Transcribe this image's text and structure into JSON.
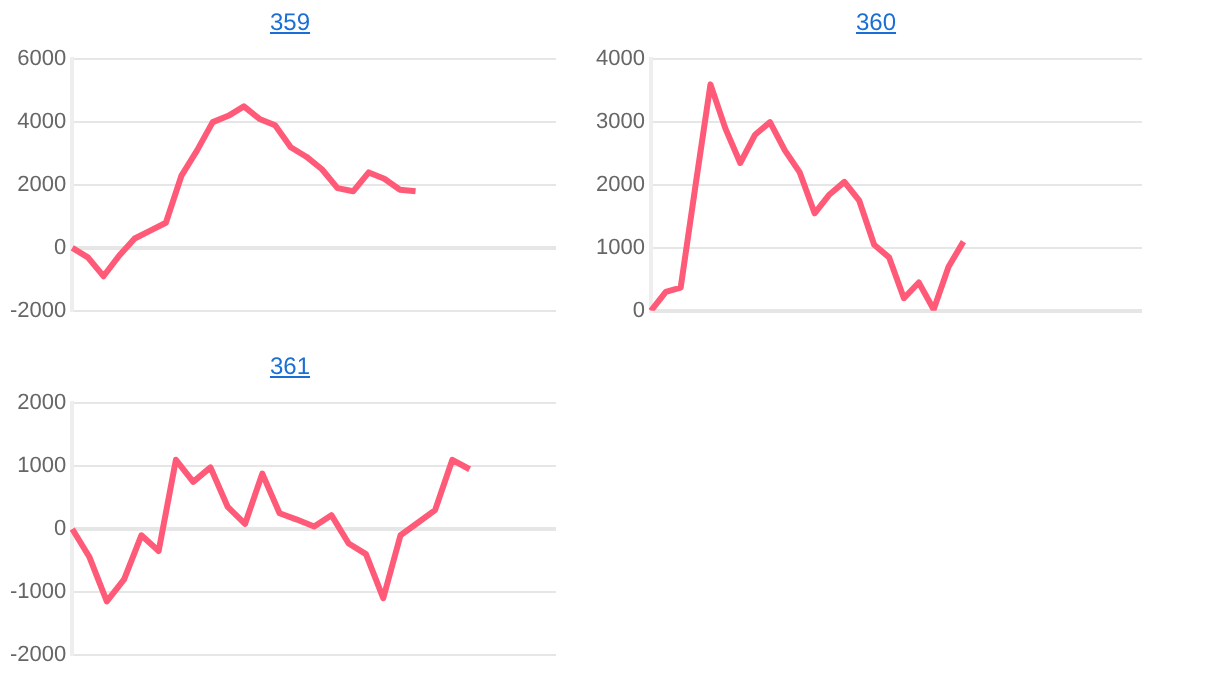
{
  "chart_data": [
    {
      "type": "line",
      "title": "359",
      "categories": [
        null,
        null,
        null,
        null,
        null,
        null,
        null,
        null,
        null,
        null,
        null,
        null,
        null,
        null,
        null,
        null,
        null,
        null,
        null,
        null,
        null,
        null,
        null,
        null,
        null,
        null,
        null,
        null,
        null,
        null,
        null,
        null
      ],
      "series": [
        {
          "color": "#ff5a78",
          "values": [
            0,
            -300,
            -900,
            -250,
            300,
            550,
            800,
            2300,
            3100,
            4000,
            4200,
            4500,
            4100,
            3900,
            3200,
            2900,
            2500,
            1900,
            1800,
            2400,
            2200,
            1850,
            1800,
            null,
            null,
            null,
            null,
            null,
            null,
            null,
            null,
            null
          ]
        }
      ],
      "ylim": [
        -2000,
        6000
      ],
      "yticks": [
        -2000,
        0,
        2000,
        4000,
        6000
      ],
      "grid": "y",
      "tick_labels": "y",
      "legend": false,
      "marker": "none",
      "line_style": "solid"
    },
    {
      "type": "line",
      "title": "360",
      "categories": [
        null,
        null,
        null,
        null,
        null,
        null,
        null,
        null,
        null,
        null,
        null,
        null,
        null,
        null,
        null,
        null,
        null,
        null,
        null,
        null,
        null,
        null,
        null,
        null,
        null,
        null,
        null,
        null,
        null,
        null,
        null,
        null,
        null,
        null
      ],
      "series": [
        {
          "color": "#ff5a78",
          "values": [
            0,
            300,
            370,
            2000,
            3600,
            2900,
            2350,
            2800,
            3000,
            2550,
            2200,
            1550,
            1850,
            2050,
            1750,
            1050,
            850,
            200,
            450,
            20,
            700,
            1100,
            null,
            null,
            null,
            null,
            null,
            null,
            null,
            null,
            null,
            null,
            null,
            null
          ]
        }
      ],
      "ylim": [
        0,
        4000
      ],
      "yticks": [
        0,
        1000,
        2000,
        3000,
        4000
      ],
      "grid": "y",
      "tick_labels": "y",
      "legend": false,
      "marker": "none",
      "line_style": "solid"
    },
    {
      "type": "line",
      "title": "361",
      "categories": [
        null,
        null,
        null,
        null,
        null,
        null,
        null,
        null,
        null,
        null,
        null,
        null,
        null,
        null,
        null,
        null,
        null,
        null,
        null,
        null,
        null,
        null,
        null,
        null,
        null,
        null,
        null,
        null,
        null
      ],
      "series": [
        {
          "color": "#ff5a78",
          "values": [
            0,
            -450,
            -1150,
            -800,
            -100,
            -350,
            1100,
            750,
            980,
            350,
            80,
            880,
            250,
            150,
            40,
            220,
            -230,
            -400,
            -1100,
            -100,
            100,
            300,
            1100,
            950,
            null,
            null,
            null,
            null,
            null
          ]
        }
      ],
      "ylim": [
        -2000,
        2000
      ],
      "yticks": [
        -2000,
        -1000,
        0,
        1000,
        2000
      ],
      "grid": "y",
      "tick_labels": "y",
      "legend": false,
      "marker": "none",
      "line_style": "solid"
    }
  ]
}
